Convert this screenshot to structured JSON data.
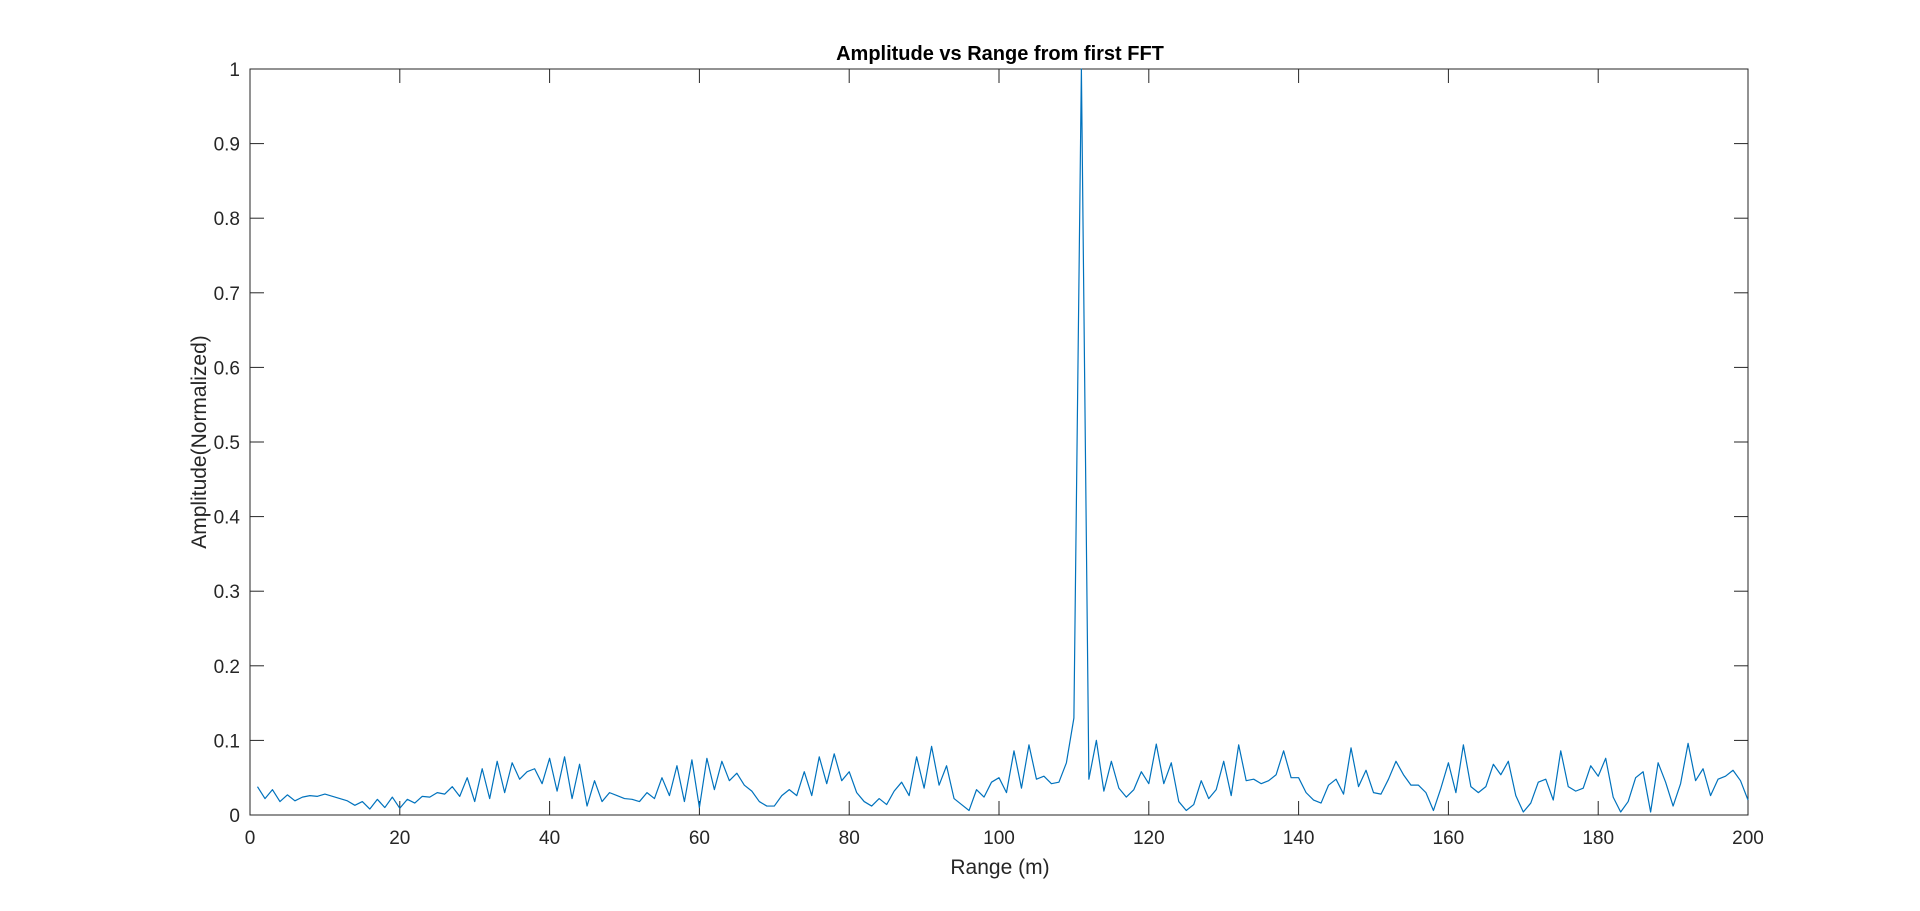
{
  "chart_data": {
    "type": "line",
    "title": "Amplitude vs Range from first FFT",
    "xlabel": "Range (m)",
    "ylabel": "Amplitude(Normalized)",
    "xlim": [
      0,
      200
    ],
    "ylim": [
      0,
      1
    ],
    "xticks": [
      "0",
      "20",
      "40",
      "60",
      "80",
      "100",
      "120",
      "140",
      "160",
      "180",
      "200"
    ],
    "yticks": [
      "0",
      "0.1",
      "0.2",
      "0.3",
      "0.4",
      "0.5",
      "0.6",
      "0.7",
      "0.8",
      "0.9",
      "1"
    ],
    "grid": false,
    "legend": "none",
    "line_color": "#0072BD",
    "series": [
      {
        "x": [
          1,
          2,
          3,
          4,
          5,
          6,
          7,
          8,
          9,
          10,
          11,
          12,
          13,
          14,
          15,
          16,
          17,
          18,
          19,
          20,
          21,
          22,
          23,
          24,
          25,
          26,
          27,
          28,
          29,
          30,
          31,
          32,
          33,
          34,
          35,
          36,
          37,
          38,
          39,
          40,
          41,
          42,
          43,
          44,
          45,
          46,
          47,
          48,
          49,
          50,
          51,
          52,
          53,
          54,
          55,
          56,
          57,
          58,
          59,
          60,
          61,
          62,
          63,
          64,
          65,
          66,
          67,
          68,
          69,
          70,
          71,
          72,
          73,
          74,
          75,
          76,
          77,
          78,
          79,
          80,
          81,
          82,
          83,
          84,
          85,
          86,
          87,
          88,
          89,
          90,
          91,
          92,
          93,
          94,
          95,
          96,
          97,
          98,
          99,
          100,
          101,
          102,
          103,
          104,
          105,
          106,
          107,
          108,
          109,
          110,
          111,
          112,
          113,
          114,
          115,
          116,
          117,
          118,
          119,
          120,
          121,
          122,
          123,
          124,
          125,
          126,
          127,
          128,
          129,
          130,
          131,
          132,
          133,
          134,
          135,
          136,
          137,
          138,
          139,
          140,
          141,
          142,
          143,
          144,
          145,
          146,
          147,
          148,
          149,
          150,
          151,
          152,
          153,
          154,
          155,
          156,
          157,
          158,
          159,
          160,
          161,
          162,
          163,
          164,
          165,
          166,
          167,
          168,
          169,
          170,
          171,
          172,
          173,
          174,
          175,
          176,
          177,
          178,
          179,
          180,
          181,
          182,
          183,
          184,
          185,
          186,
          187,
          188,
          189,
          190,
          191,
          192,
          193,
          194,
          195,
          196,
          197,
          198,
          199,
          200
        ],
        "values": [
          0.038,
          0.022,
          0.034,
          0.018,
          0.027,
          0.019,
          0.024,
          0.026,
          0.025,
          0.028,
          0.025,
          0.022,
          0.019,
          0.013,
          0.018,
          0.008,
          0.021,
          0.01,
          0.024,
          0.009,
          0.021,
          0.016,
          0.025,
          0.024,
          0.03,
          0.028,
          0.038,
          0.025,
          0.05,
          0.018,
          0.062,
          0.022,
          0.072,
          0.03,
          0.07,
          0.048,
          0.058,
          0.062,
          0.042,
          0.076,
          0.032,
          0.078,
          0.022,
          0.068,
          0.012,
          0.046,
          0.018,
          0.03,
          0.026,
          0.022,
          0.021,
          0.018,
          0.03,
          0.022,
          0.05,
          0.026,
          0.066,
          0.018,
          0.074,
          0.01,
          0.076,
          0.034,
          0.072,
          0.046,
          0.056,
          0.04,
          0.032,
          0.018,
          0.012,
          0.012,
          0.026,
          0.034,
          0.026,
          0.058,
          0.026,
          0.078,
          0.042,
          0.082,
          0.046,
          0.058,
          0.03,
          0.018,
          0.012,
          0.022,
          0.014,
          0.032,
          0.044,
          0.026,
          0.078,
          0.036,
          0.092,
          0.04,
          0.066,
          0.022,
          0.014,
          0.006,
          0.034,
          0.024,
          0.044,
          0.05,
          0.03,
          0.086,
          0.036,
          0.094,
          0.048,
          0.052,
          0.042,
          0.044,
          0.07,
          0.13,
          1.0,
          0.048,
          0.1,
          0.032,
          0.072,
          0.036,
          0.024,
          0.034,
          0.058,
          0.042,
          0.095,
          0.042,
          0.07,
          0.018,
          0.006,
          0.014,
          0.046,
          0.022,
          0.034,
          0.072,
          0.026,
          0.094,
          0.046,
          0.048,
          0.042,
          0.046,
          0.054,
          0.086,
          0.05,
          0.05,
          0.03,
          0.02,
          0.016,
          0.04,
          0.048,
          0.028,
          0.09,
          0.038,
          0.06,
          0.03,
          0.028,
          0.048,
          0.072,
          0.054,
          0.04,
          0.04,
          0.03,
          0.006,
          0.036,
          0.07,
          0.03,
          0.094,
          0.038,
          0.03,
          0.038,
          0.068,
          0.054,
          0.072,
          0.026,
          0.004,
          0.016,
          0.044,
          0.048,
          0.02,
          0.086,
          0.038,
          0.032,
          0.036,
          0.066,
          0.052,
          0.076,
          0.024,
          0.004,
          0.018,
          0.05,
          0.058,
          0.004,
          0.07,
          0.044,
          0.012,
          0.042,
          0.096,
          0.046,
          0.062,
          0.026,
          0.048,
          0.052,
          0.06,
          0.046,
          0.02
        ]
      }
    ]
  }
}
